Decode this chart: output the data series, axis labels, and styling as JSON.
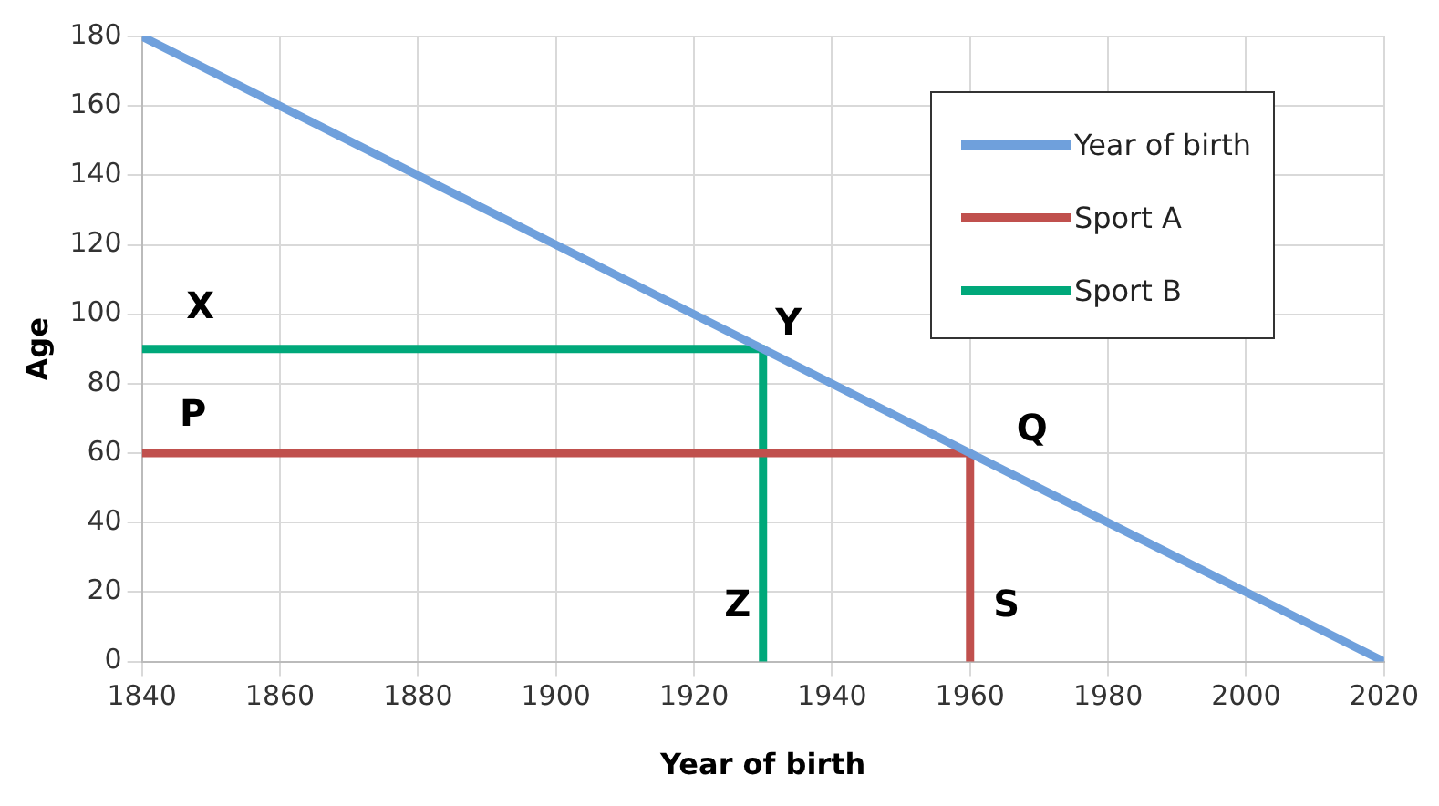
{
  "chart_data": {
    "type": "line",
    "xlabel": "Year of birth",
    "ylabel": "Age",
    "xlim": [
      1840,
      2020
    ],
    "ylim": [
      0,
      180
    ],
    "xticks": [
      1840,
      1860,
      1880,
      1900,
      1920,
      1940,
      1960,
      1980,
      2000,
      2020
    ],
    "yticks": [
      0,
      20,
      40,
      60,
      80,
      100,
      120,
      140,
      160,
      180
    ],
    "grid": true,
    "legend": "top right",
    "marker": "none",
    "line_style": "solid",
    "series": [
      {
        "name": "Year of birth",
        "color": "#6fa0dc",
        "x": [
          1840,
          2020
        ],
        "values": [
          180,
          0
        ]
      },
      {
        "name": "Sport A",
        "color": "#c0504d",
        "x": [
          1840,
          1960,
          1960
        ],
        "values": [
          60,
          60,
          0
        ]
      },
      {
        "name": "Sport B",
        "color": "#00a87a",
        "x": [
          1840,
          1930,
          1930
        ],
        "values": [
          90,
          90,
          0
        ]
      }
    ],
    "annotations": [
      {
        "text": "X",
        "x": 1840,
        "y": 90
      },
      {
        "text": "Y",
        "x": 1930,
        "y": 90
      },
      {
        "text": "P",
        "x": 1840,
        "y": 60
      },
      {
        "text": "Q",
        "x": 1960,
        "y": 60
      },
      {
        "text": "Z",
        "x": 1930,
        "y": 0
      },
      {
        "text": "S",
        "x": 1960,
        "y": 0
      }
    ]
  }
}
